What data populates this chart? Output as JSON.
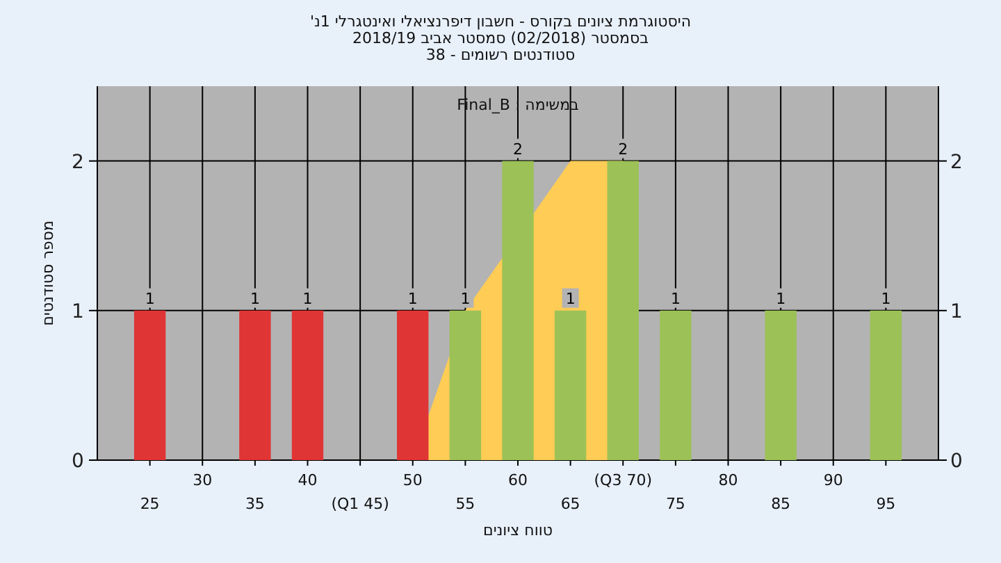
{
  "chart_data": {
    "type": "bar",
    "title": "היסטוגרמת ציונים בקורס - חשבון דיפרנציאלי ואינטגרלי 1נ'",
    "subtitle": "בסמסטר  (02/2018)  סמסטר אביב 2018/19",
    "annotations": [
      "סטודנטים רשומים - 38",
      "במשימה : Final_B"
    ],
    "xlabel": "טווח ציונים",
    "ylabel": "מספר סטודנטים",
    "categories": [
      "25",
      "30",
      "35",
      "40",
      "(Q1 45)",
      "50",
      "55",
      "60",
      "65",
      "(Q3 70)",
      "75",
      "80",
      "85",
      "90",
      "95"
    ],
    "series": [
      {
        "type": "area",
        "color": "#ffcc55",
        "values": [
          null,
          null,
          null,
          null,
          null,
          0,
          1,
          null,
          2,
          2,
          null,
          null,
          null,
          null,
          null
        ]
      },
      {
        "colors": [
          "#e03535",
          "#e03535",
          "#e03535",
          "#e03535",
          "#e03535",
          "#e03535",
          "#9cc156",
          "#9cc156",
          "#9cc156",
          "#9cc156",
          "#9cc156",
          "#9cc156",
          "#9cc156",
          "#9cc156",
          "#9cc156"
        ],
        "values": [
          1,
          0,
          1,
          1,
          0,
          1,
          1,
          2,
          1,
          2,
          1,
          0,
          1,
          0,
          1
        ],
        "value_labels": [
          "1",
          null,
          "1",
          "1",
          null,
          "1",
          "1",
          "2",
          "1",
          "2",
          "1",
          null,
          "1",
          null,
          "1"
        ]
      }
    ],
    "ylim": [
      0,
      2.5
    ],
    "yticks": [
      0,
      1,
      2
    ],
    "y2lim": [
      0,
      2.5
    ],
    "y2ticks": [
      0,
      1,
      2
    ],
    "grid": true
  }
}
